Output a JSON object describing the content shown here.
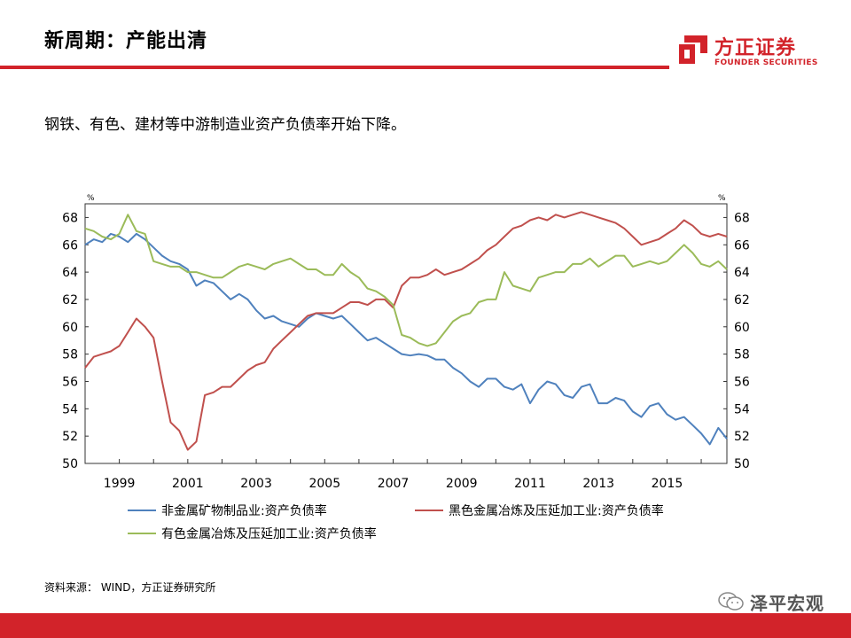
{
  "header": {
    "title": "新周期：产能出清"
  },
  "logo": {
    "cn": "方正证券",
    "en": "FOUNDER SECURITIES",
    "color": "#d2232a"
  },
  "subtitle": "钢铁、有色、建材等中游制造业资产负债率开始下降。",
  "source": "资料来源：  WIND，方正证券研究所",
  "watermark": {
    "text": "泽平宏观",
    "icon": "wechat-icon"
  },
  "chart_data": {
    "type": "line",
    "title": "",
    "xlabel": "",
    "ylabel_left": "%",
    "ylabel_right": "%",
    "ylim": [
      50,
      69
    ],
    "xlim": [
      1998.0,
      2016.75
    ],
    "yticks": [
      50,
      52,
      54,
      56,
      58,
      60,
      62,
      64,
      66,
      68
    ],
    "xticks": [
      "1999",
      "2001",
      "2003",
      "2005",
      "2007",
      "2009",
      "2011",
      "2013",
      "2015"
    ],
    "xtick_values": [
      1999,
      2001,
      2003,
      2005,
      2007,
      2009,
      2011,
      2013,
      2015
    ],
    "grid": false,
    "legend": "bottom",
    "series": [
      {
        "name": "非金属矿物制品业:资产负债率",
        "color": "#4f81bd",
        "points": [
          [
            1998.0,
            66.0
          ],
          [
            1998.25,
            66.4
          ],
          [
            1998.5,
            66.2
          ],
          [
            1998.75,
            66.8
          ],
          [
            1999.0,
            66.6
          ],
          [
            1999.25,
            66.2
          ],
          [
            1999.5,
            66.8
          ],
          [
            1999.75,
            66.4
          ],
          [
            2000.0,
            65.8
          ],
          [
            2000.25,
            65.2
          ],
          [
            2000.5,
            64.8
          ],
          [
            2000.75,
            64.6
          ],
          [
            2001.0,
            64.2
          ],
          [
            2001.25,
            63.0
          ],
          [
            2001.5,
            63.4
          ],
          [
            2001.75,
            63.2
          ],
          [
            2002.0,
            62.6
          ],
          [
            2002.25,
            62.0
          ],
          [
            2002.5,
            62.4
          ],
          [
            2002.75,
            62.0
          ],
          [
            2003.0,
            61.2
          ],
          [
            2003.25,
            60.6
          ],
          [
            2003.5,
            60.8
          ],
          [
            2003.75,
            60.4
          ],
          [
            2004.0,
            60.2
          ],
          [
            2004.25,
            60.0
          ],
          [
            2004.5,
            60.6
          ],
          [
            2004.75,
            61.0
          ],
          [
            2005.0,
            60.8
          ],
          [
            2005.25,
            60.6
          ],
          [
            2005.5,
            60.8
          ],
          [
            2005.75,
            60.2
          ],
          [
            2006.0,
            59.6
          ],
          [
            2006.25,
            59.0
          ],
          [
            2006.5,
            59.2
          ],
          [
            2006.75,
            58.8
          ],
          [
            2007.0,
            58.4
          ],
          [
            2007.25,
            58.0
          ],
          [
            2007.5,
            57.9
          ],
          [
            2007.75,
            58.0
          ],
          [
            2008.0,
            57.9
          ],
          [
            2008.25,
            57.6
          ],
          [
            2008.5,
            57.6
          ],
          [
            2008.75,
            57.0
          ],
          [
            2009.0,
            56.6
          ],
          [
            2009.25,
            56.0
          ],
          [
            2009.5,
            55.6
          ],
          [
            2009.75,
            56.2
          ],
          [
            2010.0,
            56.2
          ],
          [
            2010.25,
            55.6
          ],
          [
            2010.5,
            55.4
          ],
          [
            2010.75,
            55.8
          ],
          [
            2011.0,
            54.4
          ],
          [
            2011.25,
            55.4
          ],
          [
            2011.5,
            56.0
          ],
          [
            2011.75,
            55.8
          ],
          [
            2012.0,
            55.0
          ],
          [
            2012.25,
            54.8
          ],
          [
            2012.5,
            55.6
          ],
          [
            2012.75,
            55.8
          ],
          [
            2013.0,
            54.4
          ],
          [
            2013.25,
            54.4
          ],
          [
            2013.5,
            54.8
          ],
          [
            2013.75,
            54.6
          ],
          [
            2014.0,
            53.8
          ],
          [
            2014.25,
            53.4
          ],
          [
            2014.5,
            54.2
          ],
          [
            2014.75,
            54.4
          ],
          [
            2015.0,
            53.6
          ],
          [
            2015.25,
            53.2
          ],
          [
            2015.5,
            53.4
          ],
          [
            2015.75,
            52.8
          ],
          [
            2016.0,
            52.2
          ],
          [
            2016.25,
            51.4
          ],
          [
            2016.5,
            52.6
          ],
          [
            2016.75,
            51.8
          ]
        ]
      },
      {
        "name": "黑色金属冶炼及压延加工业:资产负债率",
        "color": "#c0504d",
        "points": [
          [
            1998.0,
            57.0
          ],
          [
            1998.25,
            57.8
          ],
          [
            1998.5,
            58.0
          ],
          [
            1998.75,
            58.2
          ],
          [
            1999.0,
            58.6
          ],
          [
            1999.25,
            59.6
          ],
          [
            1999.5,
            60.6
          ],
          [
            1999.75,
            60.0
          ],
          [
            2000.0,
            59.2
          ],
          [
            2000.25,
            56.0
          ],
          [
            2000.5,
            53.0
          ],
          [
            2000.75,
            52.4
          ],
          [
            2001.0,
            51.0
          ],
          [
            2001.25,
            51.6
          ],
          [
            2001.5,
            55.0
          ],
          [
            2001.75,
            55.2
          ],
          [
            2002.0,
            55.6
          ],
          [
            2002.25,
            55.6
          ],
          [
            2002.5,
            56.2
          ],
          [
            2002.75,
            56.8
          ],
          [
            2003.0,
            57.2
          ],
          [
            2003.25,
            57.4
          ],
          [
            2003.5,
            58.4
          ],
          [
            2003.75,
            59.0
          ],
          [
            2004.0,
            59.6
          ],
          [
            2004.25,
            60.2
          ],
          [
            2004.5,
            60.8
          ],
          [
            2004.75,
            61.0
          ],
          [
            2005.0,
            61.0
          ],
          [
            2005.25,
            61.0
          ],
          [
            2005.5,
            61.4
          ],
          [
            2005.75,
            61.8
          ],
          [
            2006.0,
            61.8
          ],
          [
            2006.25,
            61.6
          ],
          [
            2006.5,
            62.0
          ],
          [
            2006.75,
            62.0
          ],
          [
            2007.0,
            61.4
          ],
          [
            2007.25,
            63.0
          ],
          [
            2007.5,
            63.6
          ],
          [
            2007.75,
            63.6
          ],
          [
            2008.0,
            63.8
          ],
          [
            2008.25,
            64.2
          ],
          [
            2008.5,
            63.8
          ],
          [
            2008.75,
            64.0
          ],
          [
            2009.0,
            64.2
          ],
          [
            2009.25,
            64.6
          ],
          [
            2009.5,
            65.0
          ],
          [
            2009.75,
            65.6
          ],
          [
            2010.0,
            66.0
          ],
          [
            2010.25,
            66.6
          ],
          [
            2010.5,
            67.2
          ],
          [
            2010.75,
            67.4
          ],
          [
            2011.0,
            67.8
          ],
          [
            2011.25,
            68.0
          ],
          [
            2011.5,
            67.8
          ],
          [
            2011.75,
            68.2
          ],
          [
            2012.0,
            68.0
          ],
          [
            2012.25,
            68.2
          ],
          [
            2012.5,
            68.4
          ],
          [
            2012.75,
            68.2
          ],
          [
            2013.0,
            68.0
          ],
          [
            2013.25,
            67.8
          ],
          [
            2013.5,
            67.6
          ],
          [
            2013.75,
            67.2
          ],
          [
            2014.0,
            66.6
          ],
          [
            2014.25,
            66.0
          ],
          [
            2014.5,
            66.2
          ],
          [
            2014.75,
            66.4
          ],
          [
            2015.0,
            66.8
          ],
          [
            2015.25,
            67.2
          ],
          [
            2015.5,
            67.8
          ],
          [
            2015.75,
            67.4
          ],
          [
            2016.0,
            66.8
          ],
          [
            2016.25,
            66.6
          ],
          [
            2016.5,
            66.8
          ],
          [
            2016.75,
            66.6
          ]
        ]
      },
      {
        "name": "有色金属冶炼及压延加工业:资产负债率",
        "color": "#9bbb59",
        "points": [
          [
            1998.0,
            67.2
          ],
          [
            1998.25,
            67.0
          ],
          [
            1998.5,
            66.6
          ],
          [
            1998.75,
            66.4
          ],
          [
            1999.0,
            66.8
          ],
          [
            1999.25,
            68.2
          ],
          [
            1999.5,
            67.0
          ],
          [
            1999.75,
            66.8
          ],
          [
            2000.0,
            64.8
          ],
          [
            2000.25,
            64.6
          ],
          [
            2000.5,
            64.4
          ],
          [
            2000.75,
            64.4
          ],
          [
            2001.0,
            64.0
          ],
          [
            2001.25,
            64.0
          ],
          [
            2001.5,
            63.8
          ],
          [
            2001.75,
            63.6
          ],
          [
            2002.0,
            63.6
          ],
          [
            2002.25,
            64.0
          ],
          [
            2002.5,
            64.4
          ],
          [
            2002.75,
            64.6
          ],
          [
            2003.0,
            64.4
          ],
          [
            2003.25,
            64.2
          ],
          [
            2003.5,
            64.6
          ],
          [
            2003.75,
            64.8
          ],
          [
            2004.0,
            65.0
          ],
          [
            2004.25,
            64.6
          ],
          [
            2004.5,
            64.2
          ],
          [
            2004.75,
            64.2
          ],
          [
            2005.0,
            63.8
          ],
          [
            2005.25,
            63.8
          ],
          [
            2005.5,
            64.6
          ],
          [
            2005.75,
            64.0
          ],
          [
            2006.0,
            63.6
          ],
          [
            2006.25,
            62.8
          ],
          [
            2006.5,
            62.6
          ],
          [
            2006.75,
            62.2
          ],
          [
            2007.0,
            61.6
          ],
          [
            2007.25,
            59.4
          ],
          [
            2007.5,
            59.2
          ],
          [
            2007.75,
            58.8
          ],
          [
            2008.0,
            58.6
          ],
          [
            2008.25,
            58.8
          ],
          [
            2008.5,
            59.6
          ],
          [
            2008.75,
            60.4
          ],
          [
            2009.0,
            60.8
          ],
          [
            2009.25,
            61.0
          ],
          [
            2009.5,
            61.8
          ],
          [
            2009.75,
            62.0
          ],
          [
            2010.0,
            62.0
          ],
          [
            2010.25,
            64.0
          ],
          [
            2010.5,
            63.0
          ],
          [
            2010.75,
            62.8
          ],
          [
            2011.0,
            62.6
          ],
          [
            2011.25,
            63.6
          ],
          [
            2011.5,
            63.8
          ],
          [
            2011.75,
            64.0
          ],
          [
            2012.0,
            64.0
          ],
          [
            2012.25,
            64.6
          ],
          [
            2012.5,
            64.6
          ],
          [
            2012.75,
            65.0
          ],
          [
            2013.0,
            64.4
          ],
          [
            2013.25,
            64.8
          ],
          [
            2013.5,
            65.2
          ],
          [
            2013.75,
            65.2
          ],
          [
            2014.0,
            64.4
          ],
          [
            2014.25,
            64.6
          ],
          [
            2014.5,
            64.8
          ],
          [
            2014.75,
            64.6
          ],
          [
            2015.0,
            64.8
          ],
          [
            2015.25,
            65.4
          ],
          [
            2015.5,
            66.0
          ],
          [
            2015.75,
            65.4
          ],
          [
            2016.0,
            64.6
          ],
          [
            2016.25,
            64.4
          ],
          [
            2016.5,
            64.8
          ],
          [
            2016.75,
            64.2
          ]
        ]
      }
    ]
  }
}
